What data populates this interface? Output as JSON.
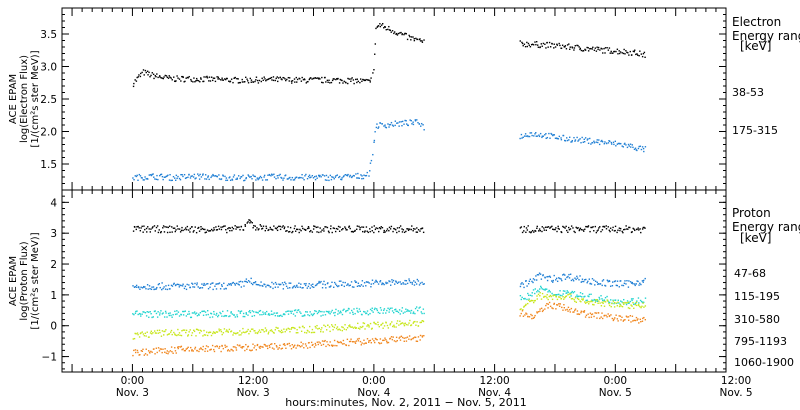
{
  "chart_data": [
    {
      "type": "scatter",
      "panel": "electron",
      "ylabel": [
        "ACE EPAM",
        "log(Electron Flux)",
        "[1/(cm²s ster MeV)]"
      ],
      "ylim": [
        1.1,
        3.9
      ],
      "yticks": [
        "1.5",
        "2.0",
        "2.5",
        "3.0",
        "3.5"
      ],
      "ytick_values": [
        1.5,
        2.0,
        2.5,
        3.0,
        3.5
      ],
      "legend_title": [
        "Electron",
        "Energy ranges",
        "[keV]"
      ],
      "series": [
        {
          "name": "38-53",
          "color": "#000000",
          "segments": [
            [
              [
                0,
                2.75
              ],
              [
                2,
                2.92
              ],
              [
                4,
                2.87
              ],
              [
                6,
                2.84
              ],
              [
                8,
                2.82
              ],
              [
                12,
                2.82
              ],
              [
                16,
                2.81
              ],
              [
                20,
                2.8
              ],
              [
                24,
                2.8
              ],
              [
                28,
                2.81
              ],
              [
                32,
                2.8
              ],
              [
                36,
                2.8
              ],
              [
                40,
                2.8
              ],
              [
                44,
                2.79
              ],
              [
                46,
                2.78
              ],
              [
                47,
                2.77
              ],
              [
                47.8,
                2.95
              ],
              [
                48.3,
                3.6
              ],
              [
                49,
                3.65
              ],
              [
                52,
                3.55
              ],
              [
                55,
                3.45
              ],
              [
                58,
                3.38
              ]
            ],
            [
              [
                77,
                3.36
              ],
              [
                80,
                3.35
              ],
              [
                84,
                3.33
              ],
              [
                88,
                3.3
              ],
              [
                92,
                3.27
              ],
              [
                96,
                3.25
              ],
              [
                100,
                3.22
              ],
              [
                102,
                3.18
              ]
            ]
          ]
        },
        {
          "name": "175-315",
          "color": "#1f7fd4",
          "segments": [
            [
              [
                0,
                1.3
              ],
              [
                4,
                1.32
              ],
              [
                8,
                1.3
              ],
              [
                12,
                1.32
              ],
              [
                16,
                1.31
              ],
              [
                20,
                1.3
              ],
              [
                24,
                1.3
              ],
              [
                28,
                1.31
              ],
              [
                32,
                1.3
              ],
              [
                36,
                1.31
              ],
              [
                40,
                1.3
              ],
              [
                44,
                1.32
              ],
              [
                46,
                1.33
              ],
              [
                47,
                1.38
              ],
              [
                47.8,
                1.8
              ],
              [
                48.3,
                2.1
              ],
              [
                50,
                2.11
              ],
              [
                54,
                2.14
              ],
              [
                57,
                2.15
              ],
              [
                58,
                2.06
              ]
            ],
            [
              [
                77,
                1.93
              ],
              [
                79,
                1.98
              ],
              [
                82,
                1.95
              ],
              [
                86,
                1.9
              ],
              [
                90,
                1.87
              ],
              [
                94,
                1.84
              ],
              [
                98,
                1.8
              ],
              [
                100,
                1.76
              ],
              [
                102,
                1.73
              ]
            ]
          ]
        }
      ]
    },
    {
      "type": "scatter",
      "panel": "proton",
      "ylabel": [
        "ACE EPAM",
        "log(Proton Flux)",
        "[1/(cm²s ster MeV)]"
      ],
      "ylim": [
        -1.5,
        4.4
      ],
      "yticks": [
        "4",
        "3",
        "2",
        "1",
        "0",
        "−1"
      ],
      "ytick_values": [
        4,
        3,
        2,
        1,
        0,
        -1
      ],
      "legend_title": [
        "Proton",
        "Energy ranges",
        "[keV]"
      ],
      "series": [
        {
          "name": "47-68",
          "color": "#000000",
          "segments": [
            [
              [
                0,
                3.15
              ],
              [
                10,
                3.15
              ],
              [
                20,
                3.15
              ],
              [
                22,
                3.2
              ],
              [
                23,
                3.5
              ],
              [
                23.5,
                3.3
              ],
              [
                25,
                3.2
              ],
              [
                30,
                3.15
              ],
              [
                40,
                3.15
              ],
              [
                50,
                3.15
              ],
              [
                58,
                3.15
              ]
            ],
            [
              [
                77,
                3.15
              ],
              [
                85,
                3.15
              ],
              [
                95,
                3.15
              ],
              [
                102,
                3.15
              ]
            ]
          ]
        },
        {
          "name": "115-195",
          "color": "#1f7fd4",
          "segments": [
            [
              [
                0,
                1.3
              ],
              [
                5,
                1.3
              ],
              [
                10,
                1.3
              ],
              [
                15,
                1.3
              ],
              [
                20,
                1.32
              ],
              [
                22,
                1.38
              ],
              [
                23,
                1.55
              ],
              [
                24,
                1.35
              ],
              [
                28,
                1.32
              ],
              [
                32,
                1.33
              ],
              [
                36,
                1.35
              ],
              [
                40,
                1.36
              ],
              [
                44,
                1.38
              ],
              [
                48,
                1.4
              ],
              [
                52,
                1.42
              ],
              [
                56,
                1.43
              ],
              [
                58,
                1.45
              ]
            ],
            [
              [
                77,
                1.3
              ],
              [
                79,
                1.45
              ],
              [
                81,
                1.65
              ],
              [
                83,
                1.52
              ],
              [
                86,
                1.62
              ],
              [
                88,
                1.58
              ],
              [
                90,
                1.48
              ],
              [
                94,
                1.4
              ],
              [
                98,
                1.37
              ],
              [
                102,
                1.48
              ]
            ]
          ]
        },
        {
          "name": "310-580",
          "color": "#22d4cf",
          "segments": [
            [
              [
                0,
                0.4
              ],
              [
                5,
                0.4
              ],
              [
                10,
                0.4
              ],
              [
                15,
                0.4
              ],
              [
                20,
                0.4
              ],
              [
                25,
                0.42
              ],
              [
                30,
                0.42
              ],
              [
                35,
                0.44
              ],
              [
                40,
                0.46
              ],
              [
                45,
                0.48
              ],
              [
                50,
                0.5
              ],
              [
                55,
                0.52
              ],
              [
                58,
                0.53
              ]
            ],
            [
              [
                77,
                0.9
              ],
              [
                79,
                1.0
              ],
              [
                81,
                1.25
              ],
              [
                83,
                1.05
              ],
              [
                86,
                1.12
              ],
              [
                88,
                1.05
              ],
              [
                90,
                0.95
              ],
              [
                94,
                0.88
              ],
              [
                98,
                0.8
              ],
              [
                102,
                0.85
              ]
            ]
          ]
        },
        {
          "name": "795-1193",
          "color": "#c7e61a",
          "segments": [
            [
              [
                0,
                -0.3
              ],
              [
                5,
                -0.22
              ],
              [
                10,
                -0.2
              ],
              [
                15,
                -0.2
              ],
              [
                20,
                -0.18
              ],
              [
                25,
                -0.15
              ],
              [
                30,
                -0.12
              ],
              [
                35,
                -0.1
              ],
              [
                40,
                -0.05
              ],
              [
                45,
                0.0
              ],
              [
                50,
                0.05
              ],
              [
                55,
                0.1
              ],
              [
                58,
                0.12
              ]
            ],
            [
              [
                77,
                0.55
              ],
              [
                79,
                0.8
              ],
              [
                81,
                1.0
              ],
              [
                83,
                0.95
              ],
              [
                86,
                0.98
              ],
              [
                88,
                0.9
              ],
              [
                90,
                0.8
              ],
              [
                94,
                0.75
              ],
              [
                98,
                0.68
              ],
              [
                102,
                0.72
              ]
            ]
          ]
        },
        {
          "name": "1060-1900",
          "color": "#f0861e",
          "segments": [
            [
              [
                0,
                -0.85
              ],
              [
                5,
                -0.8
              ],
              [
                10,
                -0.75
              ],
              [
                15,
                -0.72
              ],
              [
                20,
                -0.7
              ],
              [
                25,
                -0.68
              ],
              [
                30,
                -0.65
              ],
              [
                35,
                -0.6
              ],
              [
                40,
                -0.55
              ],
              [
                45,
                -0.5
              ],
              [
                50,
                -0.45
              ],
              [
                55,
                -0.4
              ],
              [
                58,
                -0.38
              ]
            ],
            [
              [
                77,
                0.45
              ],
              [
                79,
                0.3
              ],
              [
                81,
                0.55
              ],
              [
                83,
                0.7
              ],
              [
                86,
                0.6
              ],
              [
                88,
                0.5
              ],
              [
                90,
                0.4
              ],
              [
                94,
                0.32
              ],
              [
                98,
                0.25
              ],
              [
                102,
                0.2
              ]
            ]
          ]
        }
      ]
    }
  ],
  "x_axis": {
    "range_hours": [
      -14,
      118
    ],
    "xlabel": "hours:minutes, Nov.  2, 2011 − Nov.  5, 2011",
    "ticks": [
      {
        "x": 0,
        "time": "0:00",
        "date": "Nov. 3"
      },
      {
        "x": 24,
        "time": "12:00",
        "date": "Nov. 3"
      },
      {
        "x": 48,
        "time": "0:00",
        "date": "Nov. 4"
      },
      {
        "x": 72,
        "time": "12:00",
        "date": "Nov. 4"
      },
      {
        "x": 96,
        "time": "0:00",
        "date": "Nov. 5"
      },
      {
        "x": 120,
        "time": "12:00",
        "date": "Nov. 5"
      }
    ]
  }
}
